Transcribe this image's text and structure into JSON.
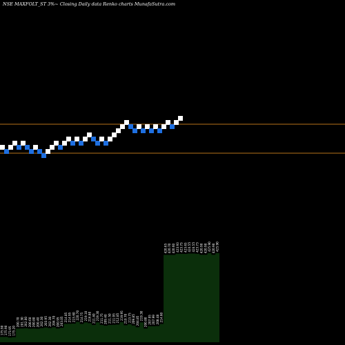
{
  "chart_data": {
    "type": "renko",
    "title": "NSE MAXFOLT_ST 3%~  Closing Daily data  Renko  charts MunafaSutra.com",
    "brick_direction_colors": {
      "up": "#ffffff",
      "down": "#1e6fe0"
    },
    "bricks": [
      "up",
      "down",
      "up",
      "up",
      "down",
      "up",
      "down",
      "down",
      "up",
      "down",
      "down",
      "up",
      "up",
      "up",
      "down",
      "up",
      "up",
      "down",
      "up",
      "down",
      "up",
      "up",
      "down",
      "down",
      "up",
      "down",
      "up",
      "up",
      "up",
      "up",
      "up",
      "down",
      "down",
      "up",
      "down",
      "up",
      "down",
      "up",
      "down",
      "up",
      "up",
      "down",
      "up",
      "up"
    ],
    "reference_line_color": "#b8741a",
    "volume_bar_color": "#0b2f0b",
    "volume_labels": [
      "175.90",
      "175.90",
      "173.95",
      "175.20",
      "200.70",
      "201.30",
      "202.00",
      "200.60",
      "200.80",
      "200.40",
      "202.30",
      "203.95",
      "202.30",
      "204.70",
      "200.95",
      "203.05",
      "214.85",
      "214.95",
      "215.60",
      "220.70",
      "214.75",
      "219.10",
      "216.80",
      "211.40",
      "219.30",
      "211.75",
      "209.40",
      "211.50",
      "211.95",
      "212.85",
      "219.95",
      "210.70",
      "213.75",
      "209.85",
      "204.85",
      "219.30",
      "200.80",
      "207.95",
      "207.99",
      "208.48",
      "214.60",
      "420.65",
      "420.70",
      "420.60",
      "423.93",
      "423.75",
      "423.65",
      "424.55",
      "424.55",
      "423.73",
      "420.90",
      "420.90",
      "425.90",
      "420.90",
      "425.90"
    ]
  }
}
